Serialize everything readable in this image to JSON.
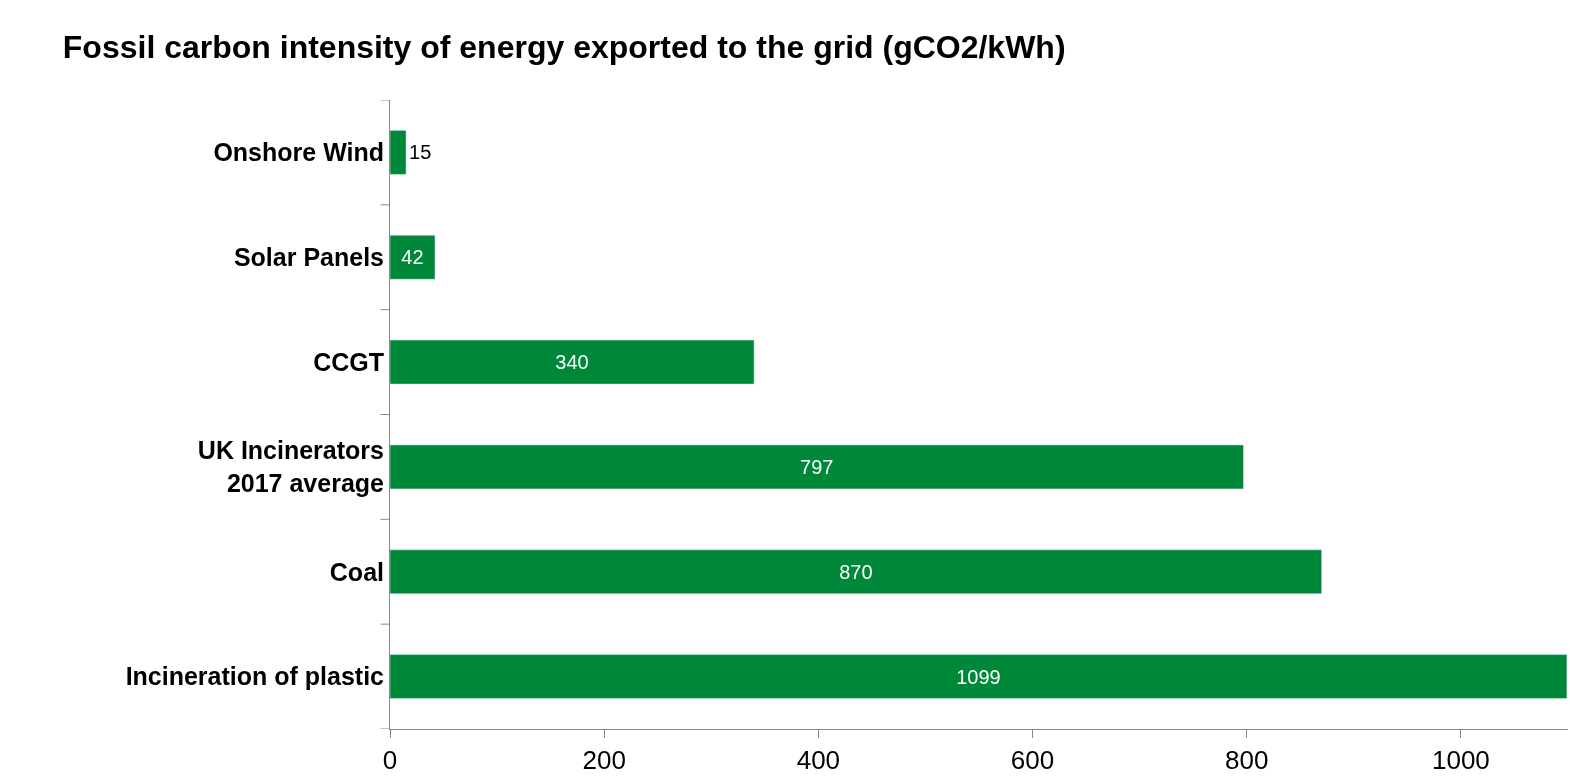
{
  "chart_data": {
    "type": "bar",
    "orientation": "horizontal",
    "title": "Fossil carbon intensity of energy exported to the grid (gCO2/kWh)",
    "categories": [
      "Onshore Wind",
      "Solar Panels",
      "CCGT",
      "UK Incinerators\n2017 average",
      "Coal",
      "Incineration of plastic"
    ],
    "values": [
      15,
      42,
      340,
      797,
      870,
      1099
    ],
    "color": "#00883a",
    "data_labels": true,
    "xlim": [
      0,
      1100
    ],
    "xticks": [
      0,
      200,
      400,
      600,
      800,
      1000
    ]
  }
}
